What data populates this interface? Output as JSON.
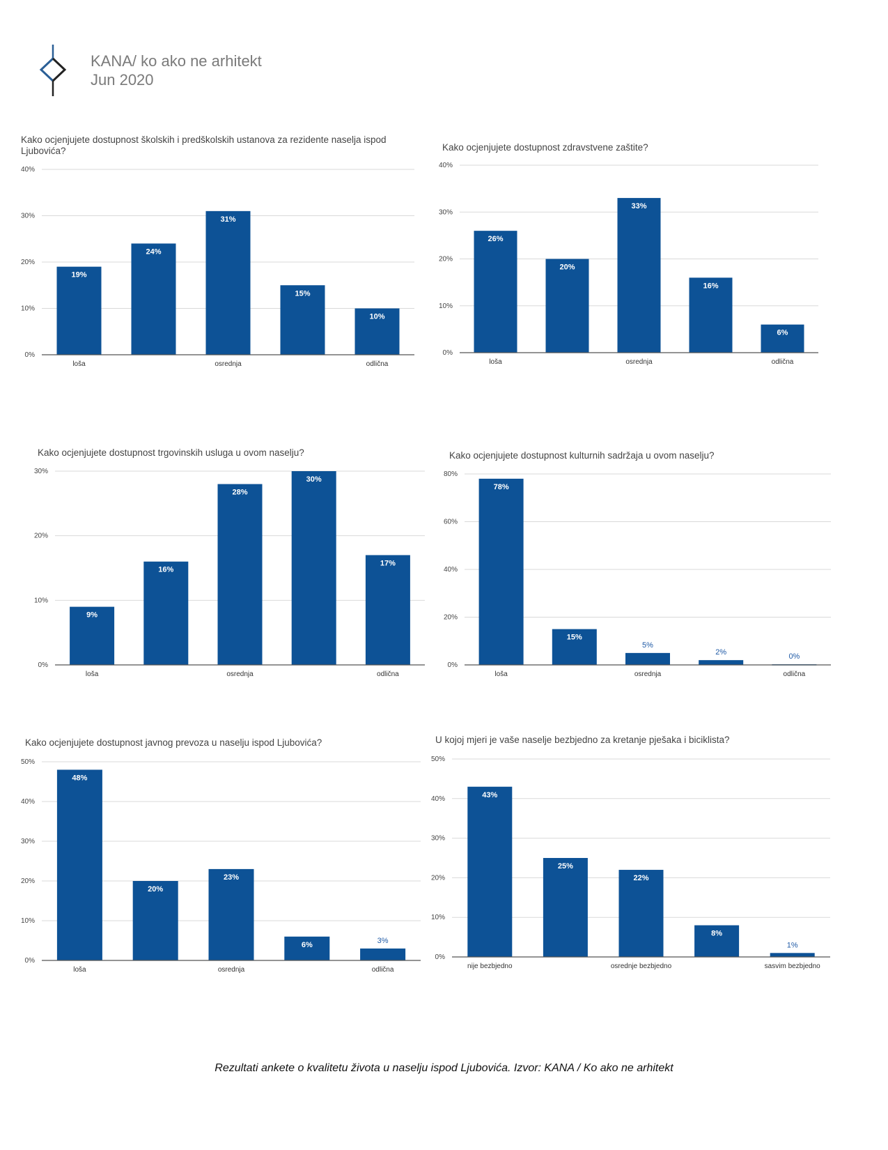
{
  "header": {
    "brand": "KANA/ ko ako ne arhitekt",
    "date": "Jun 2020",
    "logo_icon": "kana-logo-icon"
  },
  "caption": "Rezultati ankete o kvalitetu života u naselju ispod Ljubovića. Izvor: KANA / Ko ako ne arhitekt",
  "colors": {
    "bar": "#0d5296",
    "grid": "#d9d9d9",
    "axis": "#555555"
  },
  "chart_data": [
    {
      "type": "bar",
      "title": "Kako ocjenjujete dostupnost školskih i predškolskih ustanova za rezidente naselja ispod Ljubovića?",
      "categories": [
        "loša",
        "",
        "osrednja",
        "",
        "odlična"
      ],
      "values": [
        19,
        24,
        31,
        15,
        10
      ],
      "value_labels": [
        "19%",
        "24%",
        "31%",
        "15%",
        "10%"
      ],
      "ylim": [
        0,
        40
      ],
      "yticks": [
        "0%",
        "10%",
        "20%",
        "30%",
        "40%"
      ],
      "grid": true
    },
    {
      "type": "bar",
      "title": "Kako ocjenjujete dostupnost zdravstvene zaštite?",
      "categories": [
        "loša",
        "",
        "osrednja",
        "",
        "odlična"
      ],
      "values": [
        26,
        20,
        33,
        16,
        6
      ],
      "value_labels": [
        "26%",
        "20%",
        "33%",
        "16%",
        "6%"
      ],
      "ylim": [
        0,
        40
      ],
      "yticks": [
        "0%",
        "10%",
        "20%",
        "30%",
        "40%"
      ],
      "grid": true
    },
    {
      "type": "bar",
      "title": "Kako ocjenjujete dostupnost trgovinskih usluga u ovom naselju?",
      "categories": [
        "loša",
        "",
        "osrednja",
        "",
        "odlična"
      ],
      "values": [
        9,
        16,
        28,
        30,
        17
      ],
      "value_labels": [
        "9%",
        "16%",
        "28%",
        "30%",
        "17%"
      ],
      "ylim": [
        0,
        30
      ],
      "yticks": [
        "0%",
        "10%",
        "20%",
        "30%"
      ],
      "grid": true
    },
    {
      "type": "bar",
      "title": "Kako ocjenjujete dostupnost kulturnih sadržaja u ovom naselju?",
      "categories": [
        "loša",
        "",
        "osrednja",
        "",
        "odlična"
      ],
      "values": [
        78,
        15,
        5,
        2,
        0
      ],
      "value_labels": [
        "78%",
        "15%",
        "5%",
        "2%",
        "0%"
      ],
      "ylim": [
        0,
        80
      ],
      "yticks": [
        "0%",
        "20%",
        "40%",
        "60%",
        "80%"
      ],
      "grid": true
    },
    {
      "type": "bar",
      "title": "Kako ocjenjujete dostupnost javnog prevoza u naselju ispod Ljubovića?",
      "categories": [
        "loša",
        "",
        "osrednja",
        "",
        "odlična"
      ],
      "values": [
        48,
        20,
        23,
        6,
        3
      ],
      "value_labels": [
        "48%",
        "20%",
        "23%",
        "6%",
        "3%"
      ],
      "ylim": [
        0,
        50
      ],
      "yticks": [
        "0%",
        "10%",
        "20%",
        "30%",
        "40%",
        "50%"
      ],
      "grid": true
    },
    {
      "type": "bar",
      "title": "U kojoj mjeri je vaše naselje bezbjedno za kretanje pješaka i biciklista?",
      "categories": [
        "nije bezbjedno",
        "",
        "osrednje bezbjedno",
        "",
        "sasvim bezbjedno"
      ],
      "values": [
        43,
        25,
        22,
        8,
        1
      ],
      "value_labels": [
        "43%",
        "25%",
        "22%",
        "8%",
        "1%"
      ],
      "ylim": [
        0,
        50
      ],
      "yticks": [
        "0%",
        "10%",
        "20%",
        "30%",
        "40%",
        "50%"
      ],
      "grid": true
    }
  ]
}
